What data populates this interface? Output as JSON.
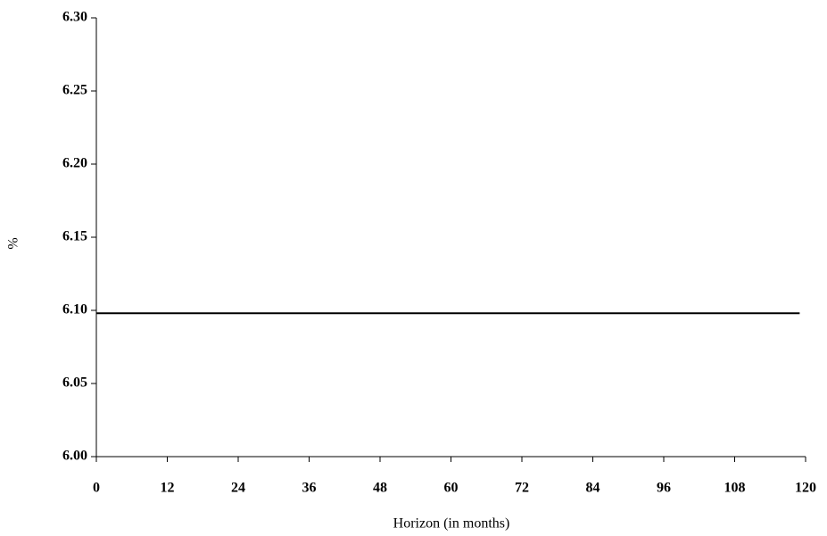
{
  "chart_data": {
    "type": "line",
    "x_label": "Horizon (in months)",
    "y_label": "%",
    "x": [
      0,
      119
    ],
    "series": [
      {
        "color": "#000000",
        "values": [
          6.098,
          6.098
        ]
      }
    ],
    "xlim": [
      0,
      120
    ],
    "xticks": [
      0,
      12,
      24,
      36,
      48,
      60,
      72,
      84,
      96,
      108,
      120
    ],
    "ylim": [
      6.0,
      6.3
    ],
    "yticks": [
      {
        "value": 6.0,
        "label": "6.00"
      },
      {
        "value": 6.05,
        "label": "6.05"
      },
      {
        "value": 6.1,
        "label": "6.10"
      },
      {
        "value": 6.15,
        "label": "6.15"
      },
      {
        "value": 6.2,
        "label": "6.20"
      },
      {
        "value": 6.25,
        "label": "6.25"
      },
      {
        "value": 6.3,
        "label": "6.30"
      }
    ],
    "grid": false
  }
}
